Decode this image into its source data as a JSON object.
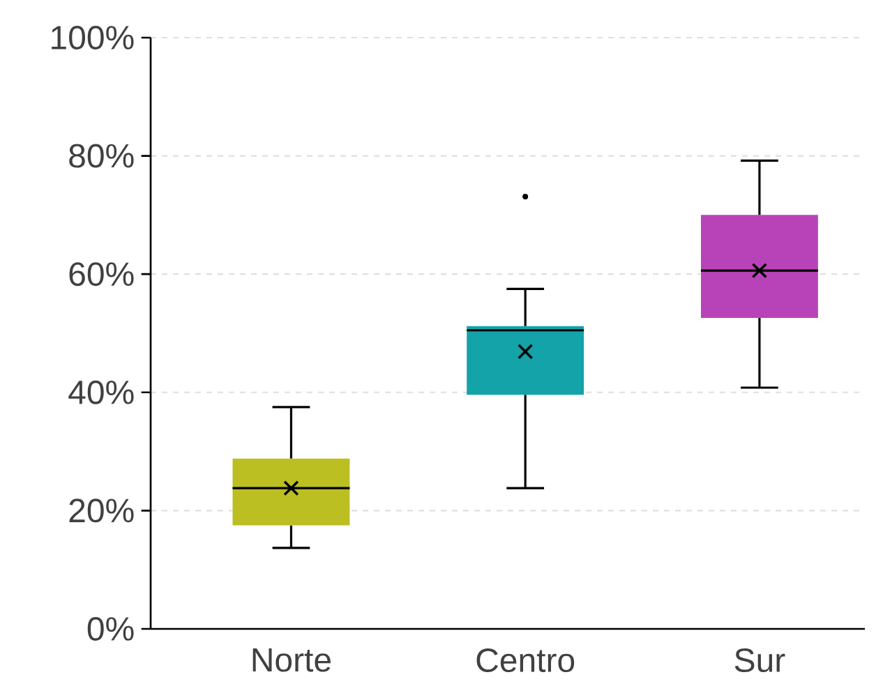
{
  "chart_data": {
    "type": "box",
    "categories": [
      "Norte",
      "Centro",
      "Sur"
    ],
    "colors": [
      "#bcbf22",
      "#13a3a9",
      "#b843b8"
    ],
    "boxes": [
      {
        "low": 13.7,
        "q1": 17.5,
        "median": 23.8,
        "q3": 28.8,
        "high": 37.5,
        "mean": 23.8
      },
      {
        "low": 23.8,
        "q1": 39.6,
        "median": 50.5,
        "q3": 51.2,
        "high": 57.5,
        "mean": 46.9,
        "outliers": [
          73.1
        ]
      },
      {
        "low": 40.8,
        "q1": 52.6,
        "median": 60.6,
        "q3": 70.0,
        "high": 79.2,
        "mean": 60.6
      }
    ],
    "ylim": [
      0,
      100
    ],
    "yticks": [
      {
        "value": 0,
        "label": "0%"
      },
      {
        "value": 20,
        "label": "20%"
      },
      {
        "value": 40,
        "label": "40%"
      },
      {
        "value": 60,
        "label": "60%"
      },
      {
        "value": 80,
        "label": "80%"
      },
      {
        "value": 100,
        "label": "100%"
      }
    ],
    "grid": "y"
  }
}
